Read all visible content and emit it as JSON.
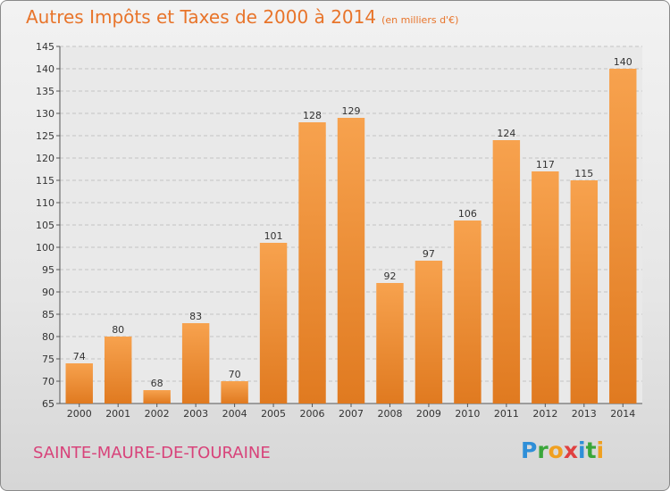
{
  "title": "Autres Impôts et Taxes de 2000 à 2014",
  "unit_note": "(en milliers d'€)",
  "town": "SAINTE-MAURE-DE-TOURAINE",
  "logo": {
    "letters": [
      "P",
      "r",
      "o",
      "x",
      "i",
      "t",
      "i"
    ],
    "colors": [
      "#2f8fd8",
      "#3aa63a",
      "#f0a020",
      "#e04040",
      "#2f8fd8",
      "#3aa63a",
      "#f0a020"
    ]
  },
  "colors": {
    "title": "#e8742a",
    "town": "#d8437a",
    "bar_light": "#f7a24e",
    "bar_dark": "#e07a20"
  },
  "chart_data": {
    "type": "bar",
    "categories": [
      "2000",
      "2001",
      "2002",
      "2003",
      "2004",
      "2005",
      "2006",
      "2007",
      "2008",
      "2009",
      "2010",
      "2011",
      "2012",
      "2013",
      "2014"
    ],
    "values": [
      74,
      80,
      68,
      83,
      70,
      101,
      128,
      129,
      92,
      97,
      106,
      124,
      117,
      115,
      140
    ],
    "ylim": [
      65,
      145
    ],
    "yticks": [
      65,
      70,
      75,
      80,
      85,
      90,
      95,
      100,
      105,
      110,
      115,
      120,
      125,
      130,
      135,
      140,
      145
    ],
    "grid": true
  }
}
